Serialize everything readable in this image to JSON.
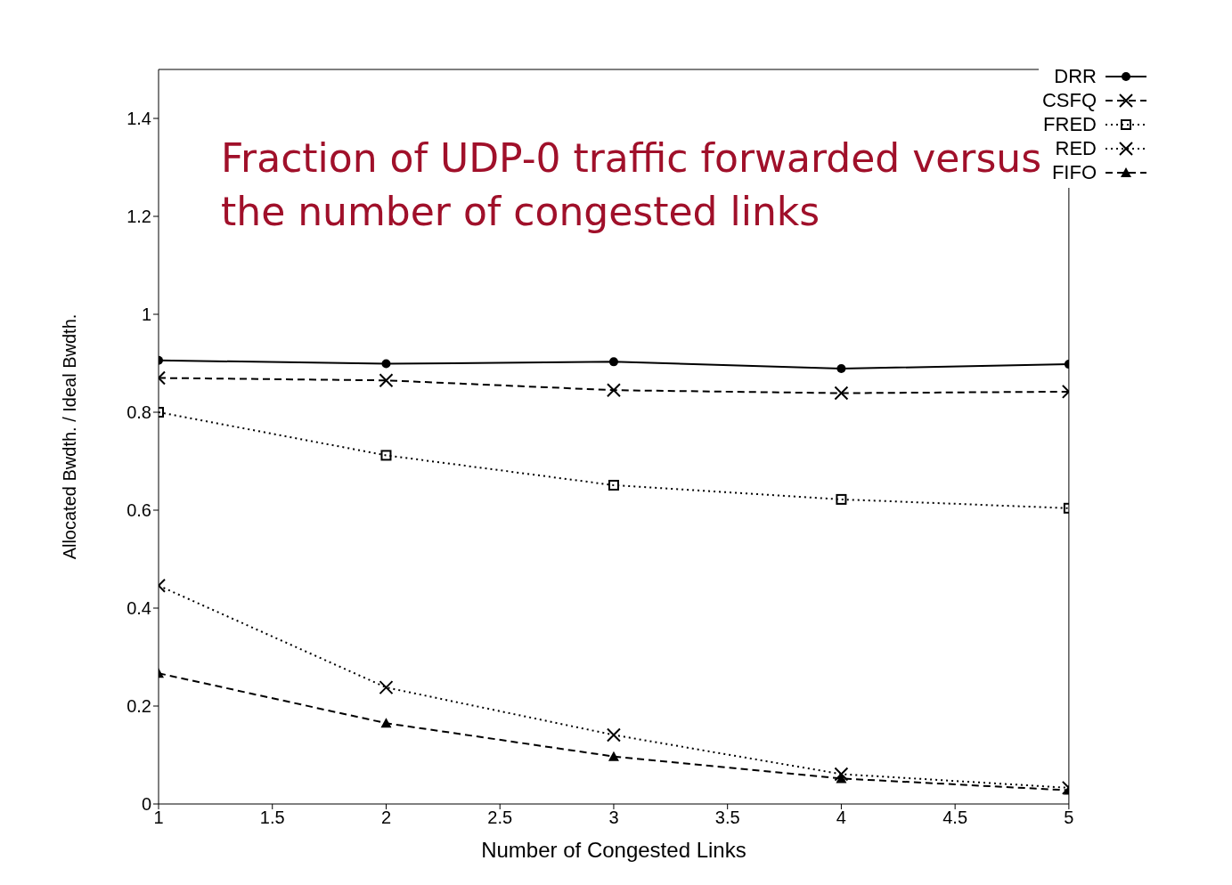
{
  "chart_data": {
    "type": "line",
    "xlabel": "Number of Congested Links",
    "ylabel": "Allocated Bwdth. / Ideal Bwdth.",
    "annotations": [
      "Fraction of UDP-0 traffic forwarded versus the number of congested links"
    ],
    "x": [
      1,
      2,
      3,
      4,
      5
    ],
    "series": [
      {
        "name": "DRR",
        "color": "#000000",
        "marker": "circle",
        "line_style": "solid",
        "values": [
          0.906,
          0.899,
          0.903,
          0.889,
          0.898
        ]
      },
      {
        "name": "CSFQ",
        "color": "#000000",
        "marker": "cross",
        "line_style": "dashed",
        "values": [
          0.87,
          0.865,
          0.845,
          0.839,
          0.842
        ]
      },
      {
        "name": "FRED",
        "color": "#000000",
        "marker": "square",
        "line_style": "dotted",
        "values": [
          0.8,
          0.712,
          0.651,
          0.622,
          0.604
        ]
      },
      {
        "name": "RED",
        "color": "#000000",
        "marker": "cross",
        "line_style": "dotted",
        "values": [
          0.446,
          0.238,
          0.141,
          0.061,
          0.033
        ]
      },
      {
        "name": "FIFO",
        "color": "#000000",
        "marker": "triangle",
        "line_style": "dashed",
        "values": [
          0.267,
          0.165,
          0.097,
          0.052,
          0.028
        ]
      }
    ],
    "xlim": [
      1,
      5
    ],
    "xticks": [
      1,
      1.5,
      2,
      2.5,
      3,
      3.5,
      4,
      4.5,
      5
    ],
    "ylim": [
      0,
      1.5
    ],
    "yticks": [
      0,
      0.2,
      0.4,
      0.6,
      0.8,
      1,
      1.2,
      1.4
    ],
    "grid": false,
    "legend": "top right"
  }
}
